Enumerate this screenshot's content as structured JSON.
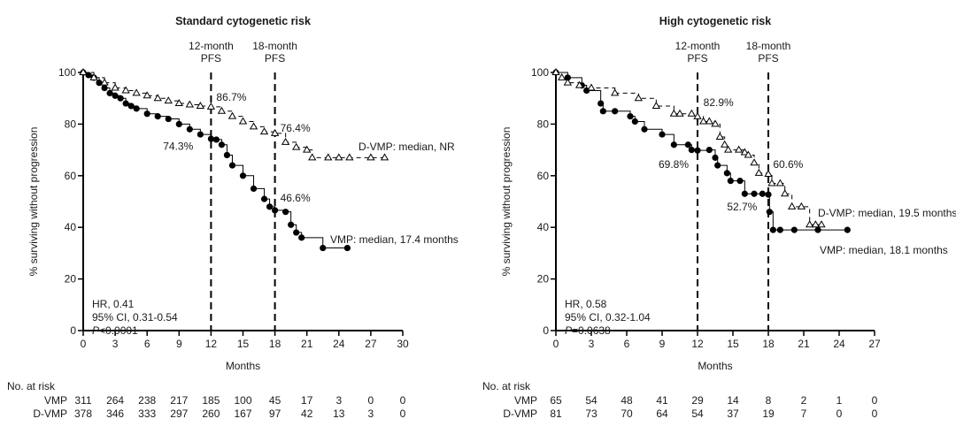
{
  "chart_data": [
    {
      "type": "line",
      "title": "Standard cytogenetic risk",
      "xlabel": "Months",
      "ylabel": "% surviving without progression",
      "xlim": [
        0,
        30
      ],
      "ylim": [
        0,
        100
      ],
      "xticks": [
        0,
        3,
        6,
        9,
        12,
        15,
        18,
        21,
        24,
        27,
        30
      ],
      "yticks": [
        0,
        20,
        40,
        60,
        80,
        100
      ],
      "grid": false,
      "reference_lines": [
        {
          "x": 12,
          "label1": "12-month",
          "label2": "PFS"
        },
        {
          "x": 18,
          "label1": "18-month",
          "label2": "PFS"
        }
      ],
      "series": [
        {
          "name": "VMP",
          "marker": "filled-circle",
          "color": "#000000",
          "line": "solid",
          "points": [
            [
              0,
              100
            ],
            [
              0.5,
              99
            ],
            [
              1,
              98
            ],
            [
              1.5,
              96
            ],
            [
              2,
              94
            ],
            [
              2.5,
              92
            ],
            [
              3,
              91
            ],
            [
              3.5,
              90
            ],
            [
              4,
              88
            ],
            [
              4.5,
              87
            ],
            [
              5,
              86
            ],
            [
              6,
              84
            ],
            [
              7,
              83
            ],
            [
              8,
              82
            ],
            [
              9,
              80
            ],
            [
              10,
              78
            ],
            [
              11,
              76
            ],
            [
              12,
              74.3
            ],
            [
              12.5,
              74
            ],
            [
              13,
              72
            ],
            [
              13.5,
              68
            ],
            [
              14,
              64
            ],
            [
              15,
              60
            ],
            [
              16,
              55
            ],
            [
              17,
              51
            ],
            [
              17.5,
              48
            ],
            [
              18,
              46.6
            ],
            [
              19,
              46
            ],
            [
              19.5,
              41
            ],
            [
              20,
              38
            ],
            [
              20.5,
              36
            ],
            [
              22.5,
              32
            ],
            [
              24.8,
              32
            ]
          ],
          "median_label": "VMP: median, 17.4 months"
        },
        {
          "name": "D-VMP",
          "marker": "open-triangle",
          "color": "#000000",
          "line": "dashed",
          "points": [
            [
              0,
              100
            ],
            [
              1,
              98
            ],
            [
              2,
              96
            ],
            [
              3,
              94
            ],
            [
              4,
              93
            ],
            [
              5,
              92
            ],
            [
              6,
              91
            ],
            [
              7,
              90
            ],
            [
              8,
              89
            ],
            [
              9,
              88
            ],
            [
              10,
              87.5
            ],
            [
              11,
              87
            ],
            [
              12,
              86.7
            ],
            [
              13,
              85
            ],
            [
              14,
              83
            ],
            [
              15,
              81
            ],
            [
              16,
              79
            ],
            [
              17,
              77
            ],
            [
              18,
              76.4
            ],
            [
              19,
              73
            ],
            [
              20,
              71
            ],
            [
              21,
              70
            ],
            [
              21.5,
              67
            ],
            [
              23,
              67
            ],
            [
              24,
              67
            ],
            [
              25,
              67
            ],
            [
              27,
              67
            ],
            [
              28.3,
              67
            ]
          ],
          "median_label": "D-VMP: median, NR"
        }
      ],
      "annotations": [
        {
          "text": "86.7%",
          "x": 12.5,
          "y": 89
        },
        {
          "text": "76.4%",
          "x": 18.5,
          "y": 77
        },
        {
          "text": "74.3%",
          "x": 7.5,
          "y": 70
        },
        {
          "text": "46.6%",
          "x": 18.5,
          "y": 50
        }
      ],
      "stats": {
        "hr": "HR, 0.41",
        "ci": "95% CI, 0.31-0.54",
        "p_italic": "P",
        "p_rest": "<0.0001"
      },
      "at_risk": {
        "header": "No. at risk",
        "rows": [
          {
            "label": "VMP",
            "values": [
              "311",
              "264",
              "238",
              "217",
              "185",
              "100",
              "45",
              "17",
              "3",
              "0",
              "0"
            ]
          },
          {
            "label": "D-VMP",
            "values": [
              "378",
              "346",
              "333",
              "297",
              "260",
              "167",
              "97",
              "42",
              "13",
              "3",
              "0"
            ]
          }
        ]
      }
    },
    {
      "type": "line",
      "title": "High cytogenetic risk",
      "xlabel": "Months",
      "ylabel": "% surviving without progression",
      "xlim": [
        0,
        27
      ],
      "ylim": [
        0,
        100
      ],
      "xticks": [
        0,
        3,
        6,
        9,
        12,
        15,
        18,
        21,
        24,
        27
      ],
      "yticks": [
        0,
        20,
        40,
        60,
        80,
        100
      ],
      "grid": false,
      "reference_lines": [
        {
          "x": 12,
          "label1": "12-month",
          "label2": "PFS"
        },
        {
          "x": 18,
          "label1": "18-month",
          "label2": "PFS"
        }
      ],
      "series": [
        {
          "name": "VMP",
          "marker": "filled-circle",
          "color": "#000000",
          "line": "solid",
          "points": [
            [
              0,
              100
            ],
            [
              1,
              98
            ],
            [
              2.2,
              95
            ],
            [
              2.6,
              93
            ],
            [
              3.8,
              88
            ],
            [
              4,
              85
            ],
            [
              5,
              85
            ],
            [
              6.3,
              83
            ],
            [
              6.7,
              81
            ],
            [
              7.5,
              78
            ],
            [
              9,
              76
            ],
            [
              10,
              72
            ],
            [
              11.2,
              72
            ],
            [
              11.5,
              70
            ],
            [
              12,
              69.8
            ],
            [
              13,
              70
            ],
            [
              13.5,
              67
            ],
            [
              13.7,
              64
            ],
            [
              14.5,
              61
            ],
            [
              14.8,
              58
            ],
            [
              15.6,
              58
            ],
            [
              16,
              53
            ],
            [
              16.8,
              53
            ],
            [
              17.5,
              53
            ],
            [
              18,
              52.7
            ],
            [
              18.1,
              46
            ],
            [
              18.4,
              39
            ],
            [
              19,
              39
            ],
            [
              20.2,
              39
            ],
            [
              22.2,
              39
            ],
            [
              24.7,
              39
            ]
          ],
          "median_label": "VMP: median, 18.1 months"
        },
        {
          "name": "D-VMP",
          "marker": "open-triangle",
          "color": "#000000",
          "line": "dashed",
          "points": [
            [
              0,
              100
            ],
            [
              0.5,
              98
            ],
            [
              1,
              96
            ],
            [
              2,
              95
            ],
            [
              3,
              94
            ],
            [
              5,
              92
            ],
            [
              7,
              90
            ],
            [
              8.5,
              87
            ],
            [
              10,
              84
            ],
            [
              10.5,
              84
            ],
            [
              11.5,
              84
            ],
            [
              12,
              82.9
            ],
            [
              12.5,
              81
            ],
            [
              13,
              81
            ],
            [
              13.5,
              80
            ],
            [
              13.9,
              75
            ],
            [
              14.3,
              72
            ],
            [
              14.6,
              70
            ],
            [
              15.5,
              70
            ],
            [
              16,
              69
            ],
            [
              16.3,
              68
            ],
            [
              16.8,
              65
            ],
            [
              17.2,
              61
            ],
            [
              18,
              60.6
            ],
            [
              18.3,
              57
            ],
            [
              19,
              57
            ],
            [
              19.4,
              53
            ],
            [
              20,
              48
            ],
            [
              20.8,
              48
            ],
            [
              21.5,
              41
            ],
            [
              22,
              41
            ],
            [
              22.5,
              41
            ]
          ],
          "median_label": "D-VMP: median, 19.5 months"
        }
      ],
      "annotations": [
        {
          "text": "82.9%",
          "x": 12.5,
          "y": 87
        },
        {
          "text": "60.6%",
          "x": 18.4,
          "y": 63
        },
        {
          "text": "69.8%",
          "x": 8.7,
          "y": 63
        },
        {
          "text": "52.7%",
          "x": 14.5,
          "y": 46.5
        }
      ],
      "stats": {
        "hr": "HR, 0.58",
        "ci": "95% CI, 0.32-1.04",
        "p_italic": "P",
        "p_rest": "=0.0638"
      },
      "at_risk": {
        "header": "No. at risk",
        "rows": [
          {
            "label": "VMP",
            "values": [
              "65",
              "54",
              "48",
              "41",
              "29",
              "14",
              "8",
              "2",
              "1",
              "0"
            ]
          },
          {
            "label": "D-VMP",
            "values": [
              "81",
              "73",
              "70",
              "64",
              "54",
              "37",
              "19",
              "7",
              "0",
              "0"
            ]
          }
        ]
      }
    }
  ]
}
